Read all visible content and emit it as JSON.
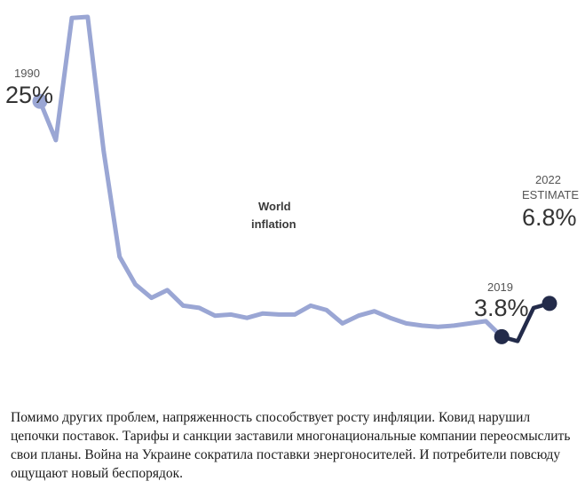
{
  "chart_data": {
    "type": "line",
    "title": "",
    "xlabel": "",
    "ylabel": "",
    "xlim": [
      1990,
      2022
    ],
    "ylim": [
      0,
      33
    ],
    "series": [
      {
        "name": "World inflation",
        "color": "#9aa6d4",
        "x": [
          1990,
          1991,
          1992,
          1993,
          1994,
          1995,
          1996,
          1997,
          1998,
          1999,
          2000,
          2001,
          2002,
          2003,
          2004,
          2005,
          2006,
          2007,
          2008,
          2009,
          2010,
          2011,
          2012,
          2013,
          2014,
          2015,
          2016,
          2017,
          2018,
          2019
        ],
        "values": [
          25,
          21.5,
          32.5,
          32.6,
          20.5,
          11,
          8.5,
          7.3,
          8,
          6.6,
          6.4,
          5.7,
          5.8,
          5.5,
          5.9,
          5.8,
          5.8,
          6.6,
          6.2,
          5,
          5.7,
          6.1,
          5.5,
          5,
          4.8,
          4.7,
          4.8,
          5,
          5.2,
          3.8
        ]
      },
      {
        "name": "",
        "color": "#232b4a",
        "x": [
          2019,
          2020,
          2021,
          2022
        ],
        "values": [
          3.8,
          3.4,
          6.4,
          6.8
        ]
      }
    ],
    "annotations": [
      {
        "year": "1990",
        "value": "25%"
      },
      {
        "year": "2019",
        "value": "3.8%"
      },
      {
        "year": "2022",
        "sublabel": "ESTIMATE",
        "value": "6.8%"
      }
    ],
    "series_label": [
      "World",
      "inflation"
    ],
    "grid": false,
    "legend": "none"
  },
  "caption": "Помимо других проблем, напряженность способствует росту инфляции. Ковид нарушил цепочки поставок. Тарифы и санкции заставили многонациональные компании переосмыслить свои планы. Война на Украине сократила поставки энергоносителей. И потребители повсюду ощущают новый беспорядок."
}
